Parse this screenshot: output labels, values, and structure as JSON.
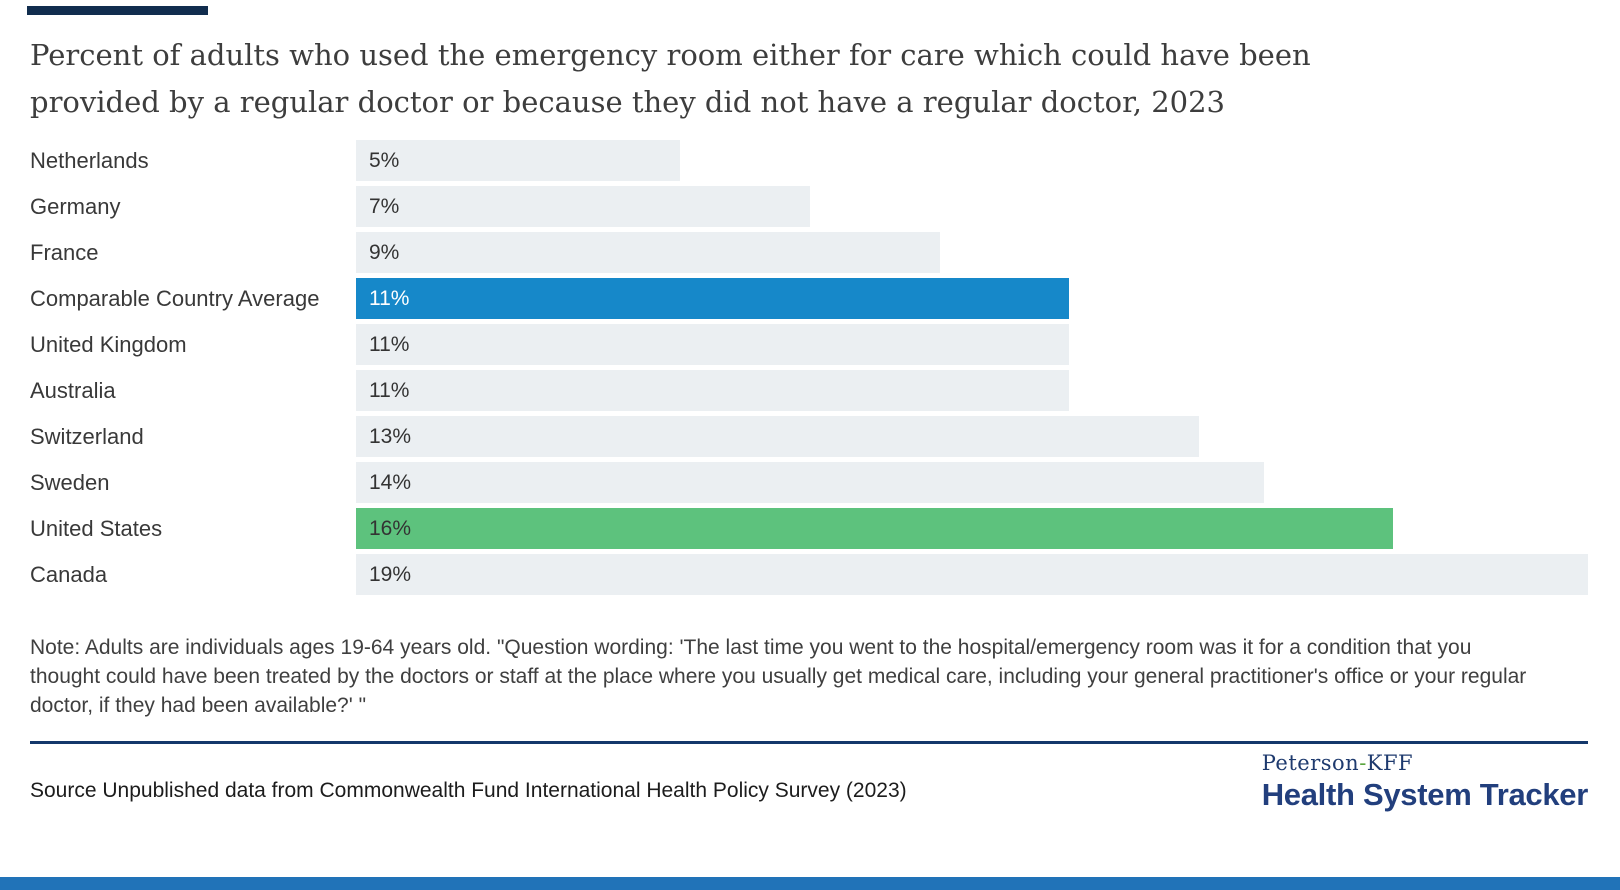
{
  "page": {
    "background_color": "#ffffff",
    "top_accent_bar_color": "#112d4e",
    "bottom_band_color": "#2173b8"
  },
  "header": {
    "title_lines": [
      "Percent of adults who used the emergency room either for care which could have been",
      "provided by a regular doctor or because they did not have a regular doctor, 2023"
    ]
  },
  "chart_data": {
    "type": "bar",
    "orientation": "horizontal",
    "title": "Percent of adults who used the emergency room either for care which could have been provided by a regular doctor or because they did not have a regular doctor, 2023",
    "xlabel": "",
    "ylabel": "",
    "xlim": [
      0,
      19
    ],
    "unit": "percent",
    "grid": false,
    "legend": "none",
    "categories": [
      "Netherlands",
      "Germany",
      "France",
      "Comparable Country Average",
      "United Kingdom",
      "Australia",
      "Switzerland",
      "Sweden",
      "United States",
      "Canada"
    ],
    "values": [
      5,
      7,
      9,
      11,
      11,
      11,
      13,
      14,
      16,
      19
    ],
    "default_bar_color": "#ebeff2",
    "highlight_colors": {
      "comparable_country_average": "#1688c9",
      "united_states": "#5dc27d"
    },
    "bars": [
      {
        "label": "Netherlands",
        "value": 5,
        "display": "5%",
        "color": "#ebeff2",
        "value_text_color": "#333333"
      },
      {
        "label": "Germany",
        "value": 7,
        "display": "7%",
        "color": "#ebeff2",
        "value_text_color": "#333333"
      },
      {
        "label": "France",
        "value": 9,
        "display": "9%",
        "color": "#ebeff2",
        "value_text_color": "#333333"
      },
      {
        "label": "Comparable Country Average",
        "value": 11,
        "display": "11%",
        "color": "#1688c9",
        "value_text_color": "#ffffff"
      },
      {
        "label": "United Kingdom",
        "value": 11,
        "display": "11%",
        "color": "#ebeff2",
        "value_text_color": "#333333"
      },
      {
        "label": "Australia",
        "value": 11,
        "display": "11%",
        "color": "#ebeff2",
        "value_text_color": "#333333"
      },
      {
        "label": "Switzerland",
        "value": 13,
        "display": "13%",
        "color": "#ebeff2",
        "value_text_color": "#333333"
      },
      {
        "label": "Sweden",
        "value": 14,
        "display": "14%",
        "color": "#ebeff2",
        "value_text_color": "#333333"
      },
      {
        "label": "United States",
        "value": 16,
        "display": "16%",
        "color": "#5dc27d",
        "value_text_color": "#333333"
      },
      {
        "label": "Canada",
        "value": 19,
        "display": "19%",
        "color": "#ebeff2",
        "value_text_color": "#333333"
      }
    ]
  },
  "footer": {
    "note": "Note: Adults are individuals ages 19-64 years old. \"Question wording: 'The last time you went to the hospital/emergency room was it for a condition that you thought could have been treated by the doctors or staff at the place where you usually get medical care, including your general practitioner's office or your regular doctor, if they had been available?' \"",
    "divider_color": "#14386b",
    "source": "Source Unpublished data from Commonwealth Fund International Health Policy Survey (2023)",
    "logo": {
      "part1": "Peterson",
      "hyphen": "-",
      "part2": "KFF",
      "line2": "Health System Tracker"
    }
  }
}
